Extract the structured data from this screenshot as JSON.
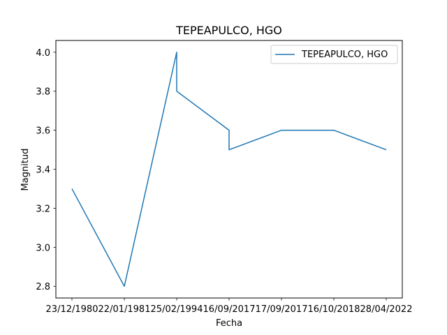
{
  "chart_data": {
    "type": "line",
    "title": "TEPEAPULCO, HGO",
    "xlabel": "Fecha",
    "ylabel": "Magnitud",
    "categories": [
      "23/12/1980",
      "22/01/1981",
      "25/02/1994",
      "16/09/2017",
      "17/09/2017",
      "16/10/2018",
      "28/04/2022"
    ],
    "points": [
      {
        "x": "23/12/1980",
        "y": 3.3
      },
      {
        "x": "22/01/1981",
        "y": 2.8
      },
      {
        "x": "25/02/1994",
        "y": 4.0
      },
      {
        "x": "25/02/1994",
        "y": 3.8
      },
      {
        "x": "16/09/2017",
        "y": 3.6
      },
      {
        "x": "16/09/2017",
        "y": 3.5
      },
      {
        "x": "17/09/2017",
        "y": 3.6
      },
      {
        "x": "16/10/2018",
        "y": 3.6
      },
      {
        "x": "28/04/2022",
        "y": 3.5
      }
    ],
    "series": [
      {
        "name": "TEPEAPULCO, HGO",
        "color": "#1f77b4"
      }
    ],
    "ylim": [
      2.74,
      4.06
    ],
    "yticks": [
      2.8,
      3.0,
      3.2,
      3.4,
      3.6,
      3.8,
      4.0
    ],
    "ytick_labels": [
      "2.8",
      "3.0",
      "3.2",
      "3.4",
      "3.6",
      "3.8",
      "4.0"
    ],
    "grid": false,
    "legend_position": "top-right"
  }
}
